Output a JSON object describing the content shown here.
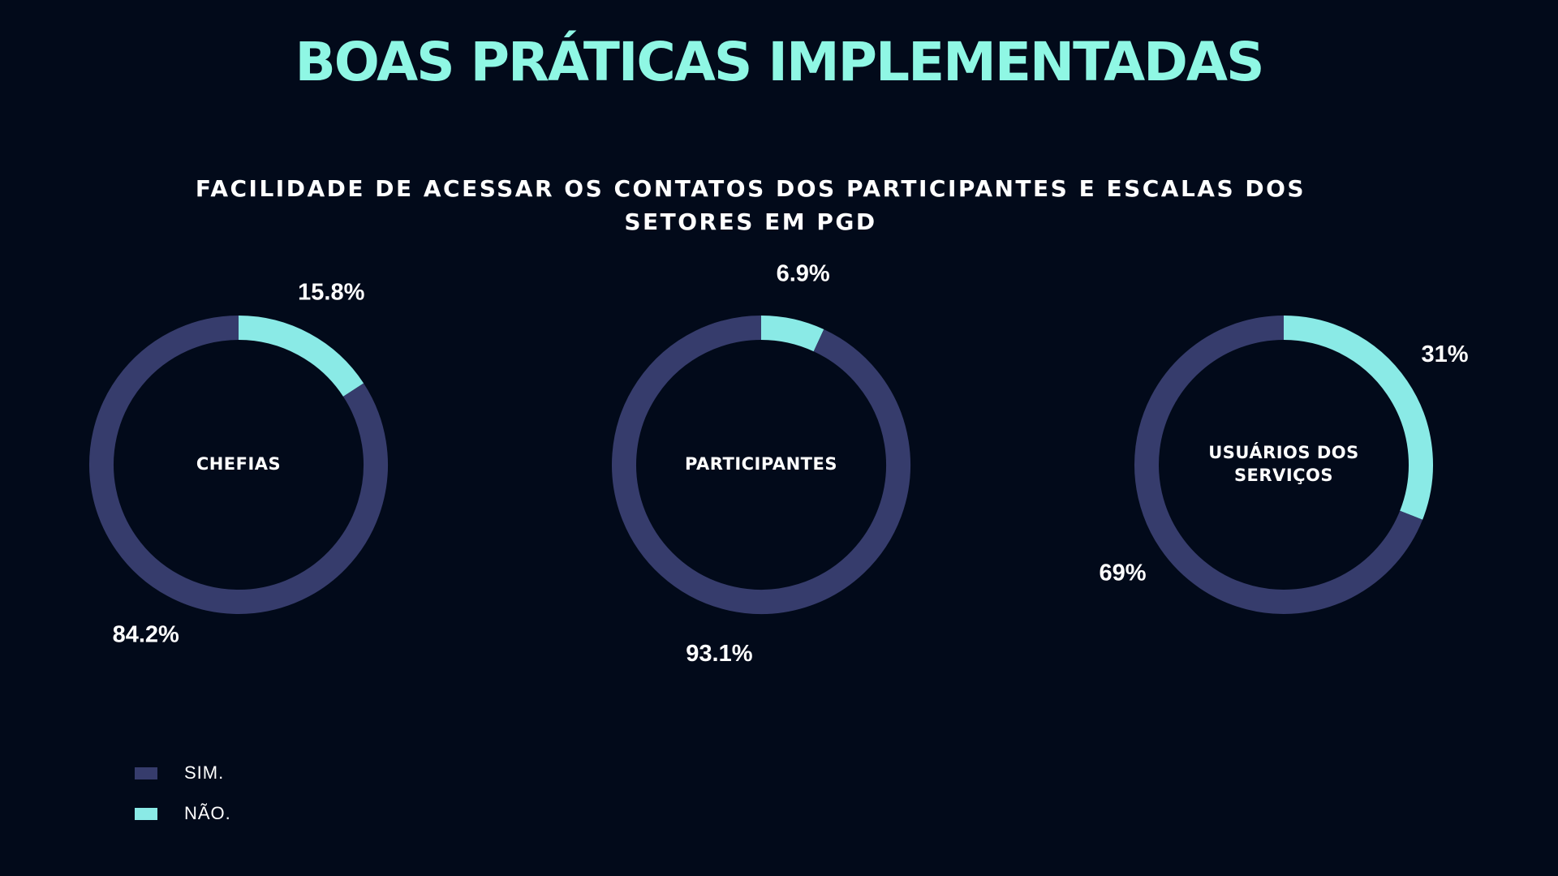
{
  "title": "BOAS PRÁTICAS IMPLEMENTADAS",
  "colors": {
    "background": "#020a1a",
    "title": "#8ff7e4",
    "sim": "#363c6c",
    "nao": "#8aeae6"
  },
  "chart_data": {
    "type": "pie",
    "title": "FACILIDADE DE ACESSAR OS CONTATOS DOS PARTICIPANTES E ESCALAS DOS SETORES EM PGD",
    "legend": {
      "placement": "bottom-left",
      "entries": [
        {
          "key": "sim",
          "label": "SIM."
        },
        {
          "key": "nao",
          "label": "NÃO."
        }
      ]
    },
    "charts": [
      {
        "center_label": [
          "CHEFIAS"
        ],
        "slices": [
          {
            "key": "nao",
            "value": 15.8,
            "label": "15.8%"
          },
          {
            "key": "sim",
            "value": 84.2,
            "label": "84.2%"
          }
        ]
      },
      {
        "center_label": [
          "PARTICIPANTES"
        ],
        "slices": [
          {
            "key": "nao",
            "value": 6.9,
            "label": "6.9%"
          },
          {
            "key": "sim",
            "value": 93.1,
            "label": "93.1%"
          }
        ]
      },
      {
        "center_label": [
          "USUÁRIOS DOS",
          "SERVIÇOS"
        ],
        "slices": [
          {
            "key": "nao",
            "value": 31,
            "label": "31%"
          },
          {
            "key": "sim",
            "value": 69,
            "label": "69%"
          }
        ]
      }
    ]
  }
}
